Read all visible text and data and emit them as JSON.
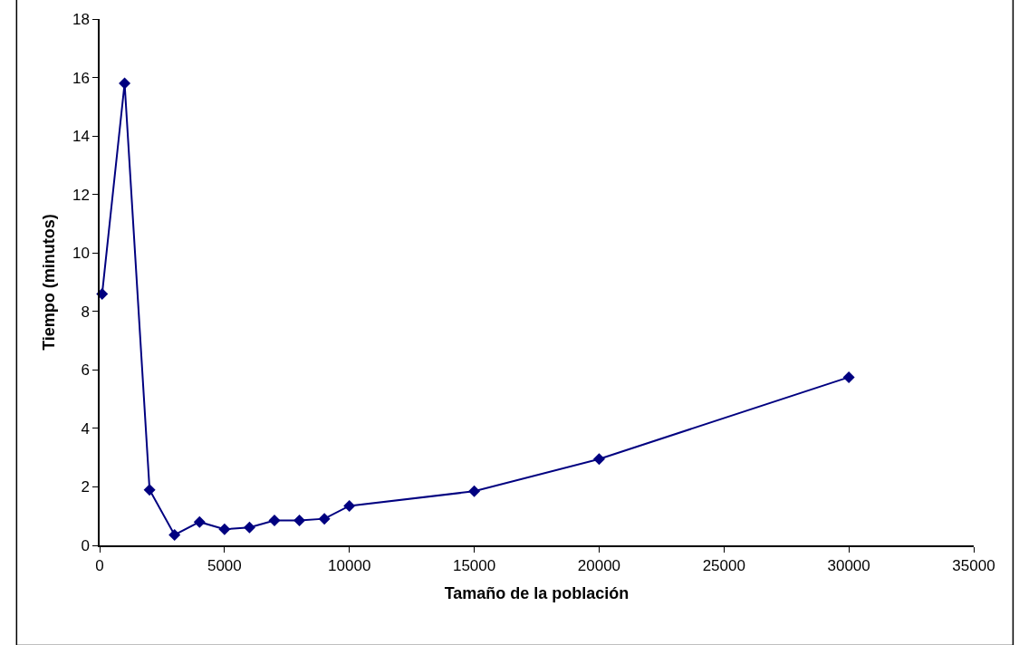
{
  "chart_data": {
    "type": "line",
    "xlabel": "Tamaño de la población",
    "ylabel": "Tiempo (minutos)",
    "x": [
      100,
      1000,
      2000,
      3000,
      4000,
      5000,
      6000,
      7000,
      8000,
      9000,
      10000,
      15000,
      20000,
      30000
    ],
    "series": [
      {
        "color": "#000080",
        "values": [
          8.6,
          15.8,
          1.9,
          0.36,
          0.8,
          0.55,
          0.61,
          0.85,
          0.85,
          0.91,
          1.35,
          1.85,
          2.95,
          5.75
        ]
      }
    ],
    "xlim": [
      0,
      35000
    ],
    "xticks": [
      0,
      5000,
      10000,
      15000,
      20000,
      25000,
      30000,
      35000
    ],
    "ylim": [
      0,
      18
    ],
    "yticks": [
      0,
      2,
      4,
      6,
      8,
      10,
      12,
      14,
      16,
      18
    ],
    "marker": "diamond",
    "line_style": "solid"
  }
}
